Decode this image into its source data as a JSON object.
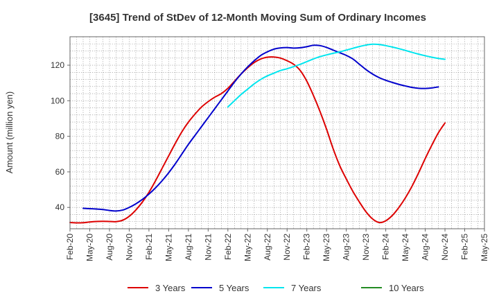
{
  "chart_data": {
    "type": "line",
    "title": "[3645]  Trend of StDev of 12-Month Moving Sum of Ordinary Incomes",
    "xlabel": "",
    "ylabel": "Amount (million yen)",
    "ylim": [
      28,
      136
    ],
    "yticks": [
      40,
      60,
      80,
      100,
      120
    ],
    "grid": true,
    "legend_position": "bottom",
    "x_tick_labels": [
      "Feb-20",
      "May-20",
      "Aug-20",
      "Nov-20",
      "Feb-21",
      "May-21",
      "Aug-21",
      "Nov-21",
      "Feb-22",
      "May-22",
      "Aug-22",
      "Nov-22",
      "Feb-23",
      "May-23",
      "Aug-23",
      "Nov-23",
      "Feb-24",
      "May-24",
      "Aug-24",
      "Nov-24",
      "Feb-25",
      "May-25"
    ],
    "x_months_range": [
      0,
      63
    ],
    "series": [
      {
        "name": "3 Years",
        "color": "#dd0000",
        "points": [
          [
            0,
            31.5
          ],
          [
            1,
            31.3
          ],
          [
            2,
            31.4
          ],
          [
            3,
            31.8
          ],
          [
            4,
            32.1
          ],
          [
            5,
            32.2
          ],
          [
            6,
            32.1
          ],
          [
            7,
            32.0
          ],
          [
            8,
            32.8
          ],
          [
            9,
            35.0
          ],
          [
            10,
            38.5
          ],
          [
            11,
            43.0
          ],
          [
            12,
            48.5
          ],
          [
            13,
            55.0
          ],
          [
            14,
            62.0
          ],
          [
            15,
            69.0
          ],
          [
            16,
            76.0
          ],
          [
            17,
            82.5
          ],
          [
            18,
            88.0
          ],
          [
            19,
            92.5
          ],
          [
            20,
            96.5
          ],
          [
            21,
            99.5
          ],
          [
            22,
            102.0
          ],
          [
            23,
            104.0
          ],
          [
            24,
            107.0
          ],
          [
            25,
            111.0
          ],
          [
            26,
            115.0
          ],
          [
            27,
            118.5
          ],
          [
            28,
            121.5
          ],
          [
            29,
            123.5
          ],
          [
            30,
            124.5
          ],
          [
            31,
            124.6
          ],
          [
            32,
            124.0
          ],
          [
            33,
            122.5
          ],
          [
            34,
            120.5
          ],
          [
            35,
            117.0
          ],
          [
            36,
            111.0
          ],
          [
            37,
            103.0
          ],
          [
            38,
            94.0
          ],
          [
            39,
            84.0
          ],
          [
            40,
            73.0
          ],
          [
            41,
            63.5
          ],
          [
            42,
            56.0
          ],
          [
            43,
            49.0
          ],
          [
            44,
            43.0
          ],
          [
            45,
            37.5
          ],
          [
            46,
            33.5
          ],
          [
            47,
            31.5
          ],
          [
            48,
            32.5
          ],
          [
            49,
            35.5
          ],
          [
            50,
            40.0
          ],
          [
            51,
            45.5
          ],
          [
            52,
            52.0
          ],
          [
            53,
            59.5
          ],
          [
            54,
            67.5
          ],
          [
            55,
            75.0
          ],
          [
            56,
            82.0
          ],
          [
            57,
            87.5
          ]
        ]
      },
      {
        "name": "5 Years",
        "color": "#0000cc",
        "points": [
          [
            2,
            39.5
          ],
          [
            3,
            39.3
          ],
          [
            4,
            39.1
          ],
          [
            5,
            38.8
          ],
          [
            6,
            38.3
          ],
          [
            7,
            38.0
          ],
          [
            8,
            38.5
          ],
          [
            9,
            40.0
          ],
          [
            10,
            42.0
          ],
          [
            11,
            44.5
          ],
          [
            12,
            47.5
          ],
          [
            13,
            51.0
          ],
          [
            14,
            55.0
          ],
          [
            15,
            59.5
          ],
          [
            16,
            64.5
          ],
          [
            17,
            70.0
          ],
          [
            18,
            75.5
          ],
          [
            19,
            80.5
          ],
          [
            20,
            85.5
          ],
          [
            21,
            90.5
          ],
          [
            22,
            95.5
          ],
          [
            23,
            100.5
          ],
          [
            24,
            105.5
          ],
          [
            25,
            110.5
          ],
          [
            26,
            115.0
          ],
          [
            27,
            119.0
          ],
          [
            28,
            122.5
          ],
          [
            29,
            125.5
          ],
          [
            30,
            127.5
          ],
          [
            31,
            129.0
          ],
          [
            32,
            129.7
          ],
          [
            33,
            129.9
          ],
          [
            34,
            129.6
          ],
          [
            35,
            129.8
          ],
          [
            36,
            130.4
          ],
          [
            37,
            131.2
          ],
          [
            38,
            131.0
          ],
          [
            39,
            130.0
          ],
          [
            40,
            128.5
          ],
          [
            41,
            127.0
          ],
          [
            42,
            125.5
          ],
          [
            43,
            123.5
          ],
          [
            44,
            120.5
          ],
          [
            45,
            117.5
          ],
          [
            46,
            115.0
          ],
          [
            47,
            113.0
          ],
          [
            48,
            111.5
          ],
          [
            49,
            110.3
          ],
          [
            50,
            109.2
          ],
          [
            51,
            108.3
          ],
          [
            52,
            107.5
          ],
          [
            53,
            107.0
          ],
          [
            54,
            106.9
          ],
          [
            55,
            107.2
          ],
          [
            56,
            107.8
          ]
        ]
      },
      {
        "name": "7 Years",
        "color": "#00e5ee",
        "points": [
          [
            24,
            96.5
          ],
          [
            25,
            100.0
          ],
          [
            26,
            103.5
          ],
          [
            27,
            106.5
          ],
          [
            28,
            109.5
          ],
          [
            29,
            112.0
          ],
          [
            30,
            114.0
          ],
          [
            31,
            115.5
          ],
          [
            32,
            117.0
          ],
          [
            33,
            118.0
          ],
          [
            34,
            119.2
          ],
          [
            35,
            120.5
          ],
          [
            36,
            122.0
          ],
          [
            37,
            123.5
          ],
          [
            38,
            124.8
          ],
          [
            39,
            125.8
          ],
          [
            40,
            126.7
          ],
          [
            41,
            127.5
          ],
          [
            42,
            128.5
          ],
          [
            43,
            129.5
          ],
          [
            44,
            130.5
          ],
          [
            45,
            131.3
          ],
          [
            46,
            131.8
          ],
          [
            47,
            131.6
          ],
          [
            48,
            131.0
          ],
          [
            49,
            130.2
          ],
          [
            50,
            129.3
          ],
          [
            51,
            128.3
          ],
          [
            52,
            127.2
          ],
          [
            53,
            126.2
          ],
          [
            54,
            125.3
          ],
          [
            55,
            124.5
          ],
          [
            56,
            123.8
          ],
          [
            57,
            123.3
          ]
        ]
      },
      {
        "name": "10 Years",
        "color": "#228b22",
        "points": []
      }
    ]
  }
}
